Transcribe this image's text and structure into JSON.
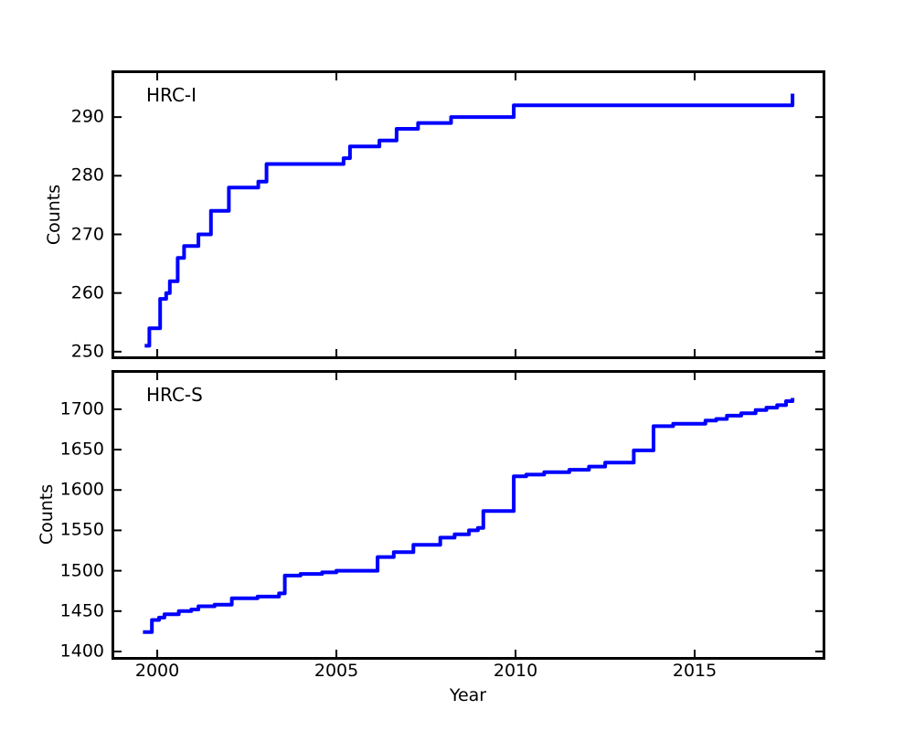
{
  "figure": {
    "background": "#ffffff",
    "axis_color": "#000000",
    "line_color": "#0000ff",
    "line_width": 4,
    "xlabel": "Year",
    "x_ticks": [
      2000,
      2005,
      2010,
      2015
    ]
  },
  "chart_data": [
    {
      "type": "line",
      "style": "step-post",
      "title": "HRC-I",
      "ylabel": "Counts",
      "xlabel": "",
      "legend": null,
      "grid": false,
      "xlim": [
        1998.8,
        2018.57
      ],
      "ylim": [
        249.2,
        297.5
      ],
      "x_ticks": [
        2000,
        2005,
        2010,
        2015
      ],
      "x_tick_labels_visible": false,
      "y_ticks": [
        250,
        260,
        270,
        280,
        290
      ],
      "x": [
        1999.65,
        1999.78,
        2000.08,
        2000.25,
        2000.35,
        2000.57,
        2000.75,
        2001.15,
        2001.5,
        2002.0,
        2002.82,
        2003.05,
        2005.2,
        2005.38,
        2006.2,
        2006.68,
        2007.28,
        2008.2,
        2009.95,
        2017.62,
        2017.73
      ],
      "y": [
        251,
        254,
        259,
        260,
        262,
        266,
        268,
        270,
        274,
        278,
        279,
        282,
        283,
        285,
        286,
        288,
        289,
        290,
        292,
        292,
        294
      ]
    },
    {
      "type": "line",
      "style": "step-post",
      "title": "HRC-S",
      "ylabel": "Counts",
      "xlabel": "Year",
      "legend": null,
      "grid": false,
      "xlim": [
        1998.8,
        2018.57
      ],
      "ylim": [
        1393.2,
        1745.1
      ],
      "x_ticks": [
        2000,
        2005,
        2010,
        2015
      ],
      "x_tick_labels_visible": true,
      "y_ticks": [
        1400,
        1450,
        1500,
        1550,
        1600,
        1650,
        1700
      ],
      "x": [
        1999.6,
        1999.85,
        2000.05,
        2000.2,
        2000.6,
        2000.95,
        2001.15,
        2001.6,
        2002.08,
        2002.8,
        2003.4,
        2003.56,
        2004.0,
        2004.6,
        2005.0,
        2006.15,
        2006.6,
        2007.15,
        2007.9,
        2008.3,
        2008.7,
        2008.95,
        2009.1,
        2009.95,
        2010.3,
        2010.8,
        2011.5,
        2012.05,
        2012.5,
        2013.3,
        2013.85,
        2014.4,
        2015.3,
        2015.6,
        2015.9,
        2016.3,
        2016.7,
        2017.0,
        2017.3,
        2017.55,
        2017.73
      ],
      "y": [
        1424,
        1439,
        1442,
        1446,
        1450,
        1452,
        1456,
        1458,
        1466,
        1468,
        1472,
        1494,
        1496,
        1498,
        1500,
        1517,
        1523,
        1532,
        1541,
        1545,
        1550,
        1553,
        1574,
        1617,
        1619,
        1622,
        1625,
        1629,
        1634,
        1649,
        1679,
        1682,
        1686,
        1688,
        1692,
        1695,
        1699,
        1702,
        1705,
        1710,
        1714
      ]
    }
  ]
}
